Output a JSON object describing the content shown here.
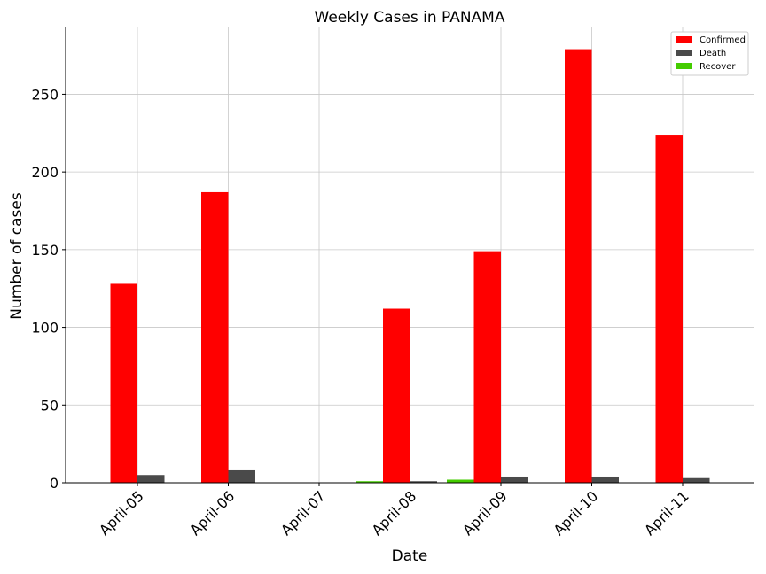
{
  "chart_data": {
    "type": "bar",
    "title": "Weekly Cases in PANAMA",
    "xlabel": "Date",
    "ylabel": "Number of cases",
    "categories": [
      "April-05",
      "April-06",
      "April-07",
      "April-08",
      "April-09",
      "April-10",
      "April-11"
    ],
    "series": [
      {
        "name": "Confirmed",
        "color": "#ff0000",
        "values": [
          128,
          187,
          0,
          112,
          149,
          279,
          224
        ]
      },
      {
        "name": "Death",
        "color": "#4a4a4a",
        "values": [
          5,
          8,
          0,
          1,
          4,
          4,
          3
        ]
      },
      {
        "name": "Recover",
        "color": "#44cc00",
        "values": [
          0,
          0,
          0,
          1,
          2,
          0,
          0
        ]
      }
    ],
    "ylim": [
      0,
      293
    ],
    "yticks": [
      0,
      50,
      100,
      150,
      200,
      250
    ],
    "grid": true,
    "legend_position": "top-right"
  }
}
